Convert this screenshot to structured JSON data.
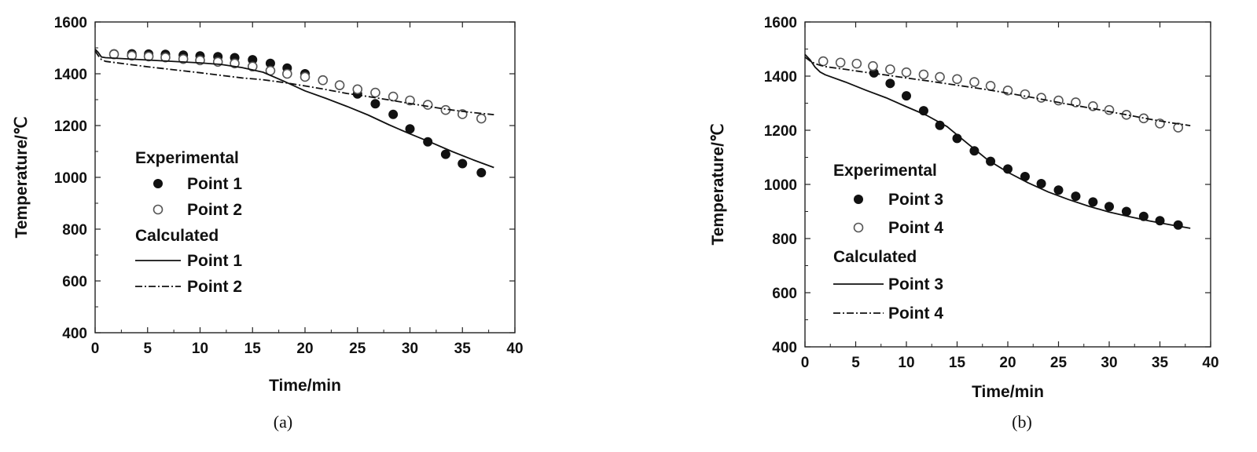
{
  "chart_data": [
    {
      "type": "line",
      "caption": "(a)",
      "xlabel": "Time/min",
      "ylabel": "Temperature/℃",
      "xlim": [
        0,
        40
      ],
      "ylim": [
        400,
        1600
      ],
      "xticks": [
        0,
        5,
        10,
        15,
        20,
        25,
        30,
        35,
        40
      ],
      "yticks": [
        400,
        600,
        800,
        1000,
        1200,
        1400,
        1600
      ],
      "grid": false,
      "legend_position": "middle-left",
      "legend": {
        "group_experimental": "Experimental",
        "group_calculated": "Calculated"
      },
      "series": [
        {
          "name": "Point 1",
          "group": "experimental",
          "marker": "filled-circle",
          "x": [
            1.8,
            3.5,
            5.1,
            6.7,
            8.4,
            10.0,
            11.7,
            13.3,
            15.0,
            16.7,
            18.3,
            20.0,
            21.7,
            23.3,
            25.0,
            26.7,
            28.4,
            30.0,
            31.7,
            33.4,
            35.0,
            36.8
          ],
          "y": [
            1477,
            1477,
            1476,
            1475,
            1472,
            1469,
            1466,
            1462,
            1454,
            1440,
            1422,
            1400,
            1376,
            1355,
            1322,
            1284,
            1243,
            1187,
            1137,
            1089,
            1053,
            1018
          ]
        },
        {
          "name": "Point 2",
          "group": "experimental",
          "marker": "open-circle",
          "x": [
            1.8,
            3.5,
            5.1,
            6.7,
            8.4,
            10.0,
            11.7,
            13.3,
            15.0,
            16.7,
            18.3,
            20.0,
            21.7,
            23.3,
            25.0,
            26.7,
            28.4,
            30.0,
            31.7,
            33.4,
            35.0,
            36.8
          ],
          "y": [
            1475,
            1470,
            1467,
            1463,
            1457,
            1452,
            1446,
            1440,
            1428,
            1412,
            1400,
            1388,
            1375,
            1356,
            1340,
            1327,
            1312,
            1297,
            1280,
            1260,
            1244,
            1227
          ]
        },
        {
          "name": "Point 1",
          "group": "calculated",
          "line": "solid",
          "x": [
            0,
            0.3,
            0.6,
            1,
            5,
            10,
            12,
            14,
            16,
            18,
            20,
            22,
            24,
            26,
            28,
            30,
            32,
            34,
            36,
            38
          ],
          "y": [
            1495,
            1482,
            1465,
            1462,
            1453,
            1442,
            1436,
            1424,
            1406,
            1371,
            1334,
            1305,
            1274,
            1241,
            1203,
            1168,
            1135,
            1100,
            1068,
            1038
          ]
        },
        {
          "name": "Point 2",
          "group": "calculated",
          "line": "dash-dot",
          "x": [
            0,
            0.3,
            0.6,
            1,
            5,
            10,
            12,
            14,
            16,
            18,
            20,
            22,
            24,
            26,
            28,
            30,
            32,
            34,
            36,
            38
          ],
          "y": [
            1488,
            1470,
            1455,
            1448,
            1427,
            1404,
            1394,
            1384,
            1377,
            1366,
            1353,
            1339,
            1324,
            1312,
            1299,
            1285,
            1272,
            1260,
            1250,
            1242
          ]
        }
      ]
    },
    {
      "type": "line",
      "caption": "(b)",
      "xlabel": "Time/min",
      "ylabel": "Temperature/℃",
      "xlim": [
        0,
        40
      ],
      "ylim": [
        400,
        1600
      ],
      "xticks": [
        0,
        5,
        10,
        15,
        20,
        25,
        30,
        35,
        40
      ],
      "yticks": [
        400,
        600,
        800,
        1000,
        1200,
        1400,
        1600
      ],
      "grid": false,
      "legend_position": "middle-left",
      "legend": {
        "group_experimental": "Experimental",
        "group_calculated": "Calculated"
      },
      "series": [
        {
          "name": "Point 3",
          "group": "experimental",
          "marker": "filled-circle",
          "x": [
            6.8,
            8.4,
            10.0,
            11.7,
            13.3,
            15.0,
            16.7,
            18.3,
            20.0,
            21.7,
            23.3,
            25.0,
            26.7,
            28.4,
            30.0,
            31.7,
            33.4,
            35.0,
            36.8
          ],
          "y": [
            1412,
            1373,
            1327,
            1272,
            1218,
            1170,
            1124,
            1085,
            1057,
            1029,
            1003,
            979,
            956,
            935,
            918,
            900,
            882,
            866,
            850
          ]
        },
        {
          "name": "Point 4",
          "group": "experimental",
          "marker": "open-circle",
          "x": [
            1.8,
            3.5,
            5.1,
            6.7,
            8.4,
            10.0,
            11.7,
            13.3,
            15.0,
            16.7,
            18.3,
            20.0,
            21.7,
            23.3,
            25.0,
            26.7,
            28.4,
            30.0,
            31.7,
            33.4,
            35.0,
            36.8
          ],
          "y": [
            1455,
            1450,
            1446,
            1437,
            1425,
            1414,
            1406,
            1397,
            1389,
            1378,
            1364,
            1347,
            1333,
            1320,
            1310,
            1303,
            1289,
            1275,
            1257,
            1244,
            1225,
            1210
          ]
        },
        {
          "name": "Point 3",
          "group": "calculated",
          "line": "solid",
          "x": [
            0,
            0.5,
            1,
            1.5,
            2,
            4,
            6,
            8,
            10,
            12,
            14,
            16,
            18,
            20,
            22,
            24,
            26,
            28,
            30,
            32,
            34,
            36,
            38
          ],
          "y": [
            1480,
            1460,
            1433,
            1415,
            1405,
            1378,
            1348,
            1320,
            1287,
            1255,
            1214,
            1152,
            1091,
            1045,
            1006,
            972,
            944,
            919,
            898,
            881,
            865,
            851,
            838
          ]
        },
        {
          "name": "Point 4",
          "group": "calculated",
          "line": "dash-dot",
          "x": [
            0,
            0.5,
            1,
            1.5,
            2,
            4,
            6,
            8,
            10,
            12,
            14,
            16,
            18,
            20,
            22,
            24,
            26,
            28,
            30,
            32,
            34,
            36,
            38
          ],
          "y": [
            1470,
            1456,
            1446,
            1440,
            1435,
            1425,
            1414,
            1404,
            1393,
            1383,
            1372,
            1361,
            1350,
            1337,
            1324,
            1310,
            1296,
            1283,
            1269,
            1255,
            1241,
            1228,
            1217
          ]
        }
      ]
    }
  ]
}
